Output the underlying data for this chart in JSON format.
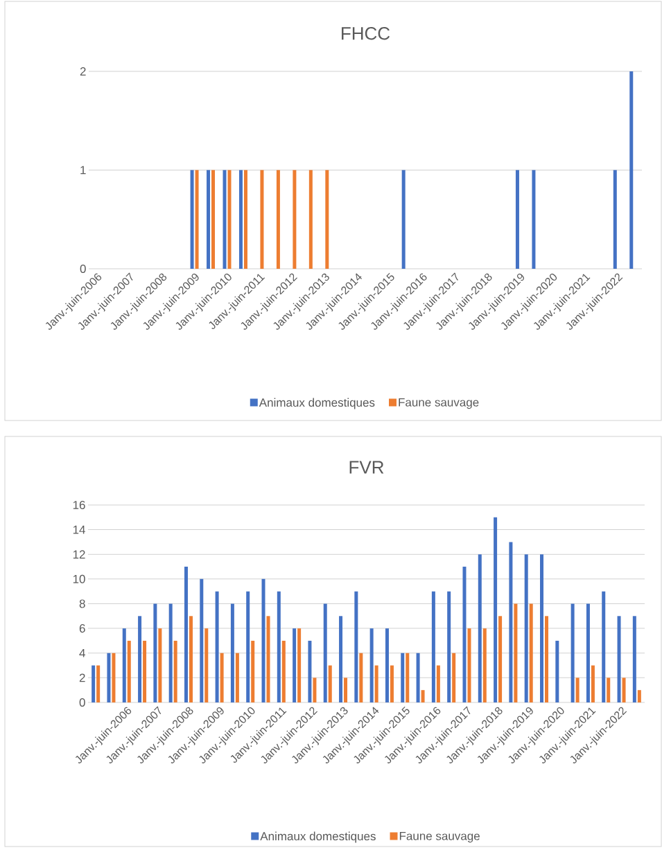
{
  "chart_data": [
    {
      "type": "bar",
      "title": "FHCC",
      "categories": [
        "Janv.-juin-2006",
        null,
        "Janv.-juin-2007",
        null,
        "Janv.-juin-2008",
        null,
        "Janv.-juin-2009",
        null,
        "Janv.-juin-2010",
        null,
        "Janv.-juin-2011",
        null,
        "Janv.-juin-2012",
        null,
        "Janv.-juin-2013",
        null,
        "Janv.-juin-2014",
        null,
        "Janv.-juin-2015",
        null,
        "Janv.-juin-2016",
        null,
        "Janv.-juin-2017",
        null,
        "Janv.-juin-2018",
        null,
        "Janv.-juin-2019",
        null,
        "Janv.-juin-2020",
        null,
        "Janv.-juin-2021",
        null,
        "Janv.-juin-2022",
        null
      ],
      "series": [
        {
          "name": "Animaux domestiques",
          "color": "#4472c4",
          "values": [
            null,
            null,
            null,
            null,
            null,
            null,
            1,
            1,
            1,
            1,
            null,
            null,
            null,
            null,
            null,
            null,
            null,
            null,
            null,
            1,
            null,
            null,
            null,
            null,
            null,
            null,
            1,
            1,
            null,
            null,
            null,
            null,
            1,
            2
          ]
        },
        {
          "name": "Faune sauvage",
          "color": "#ed7d31",
          "values": [
            null,
            null,
            null,
            null,
            null,
            null,
            1,
            1,
            1,
            1,
            1,
            1,
            1,
            1,
            1,
            null,
            null,
            null,
            null,
            null,
            null,
            null,
            null,
            null,
            null,
            null,
            null,
            null,
            null,
            null,
            null,
            null,
            null,
            null
          ]
        }
      ],
      "ylim": [
        0,
        2
      ],
      "yticks": [
        0,
        1,
        2
      ],
      "grid": "y",
      "legend": "bottom"
    },
    {
      "type": "bar",
      "title": "FVR",
      "categories": [
        null,
        null,
        "Janv.-juin-2006",
        null,
        "Janv.-juin-2007",
        null,
        "Janv.-juin-2008",
        null,
        "Janv.-juin-2009",
        null,
        "Janv.-juin-2010",
        null,
        "Janv.-juin-2011",
        null,
        "Janv.-juin-2012",
        null,
        "Janv.-juin-2013",
        null,
        "Janv.-juin-2014",
        null,
        "Janv.-juin-2015",
        null,
        "Janv.-juin-2016",
        null,
        "Janv.-juin-2017",
        null,
        "Janv.-juin-2018",
        null,
        "Janv.-juin-2019",
        null,
        "Janv.-juin-2020",
        null,
        "Janv.-juin-2021",
        null,
        "Janv.-juin-2022",
        null
      ],
      "series": [
        {
          "name": "Animaux domestiques",
          "color": "#4472c4",
          "values": [
            3,
            4,
            6,
            7,
            8,
            8,
            11,
            10,
            9,
            8,
            9,
            10,
            9,
            6,
            5,
            8,
            7,
            9,
            6,
            6,
            4,
            4,
            9,
            9,
            11,
            12,
            15,
            13,
            12,
            12,
            5,
            8,
            8,
            9,
            7,
            7
          ]
        },
        {
          "name": "Faune sauvage",
          "color": "#ed7d31",
          "values": [
            3,
            4,
            5,
            5,
            6,
            5,
            7,
            6,
            4,
            4,
            5,
            7,
            5,
            6,
            2,
            3,
            2,
            4,
            3,
            3,
            4,
            1,
            3,
            4,
            6,
            6,
            7,
            8,
            8,
            7,
            null,
            2,
            3,
            2,
            2,
            1
          ]
        }
      ],
      "ylim": [
        0,
        16
      ],
      "yticks": [
        0,
        2,
        4,
        6,
        8,
        10,
        12,
        14,
        16
      ],
      "grid": "y",
      "legend": "bottom"
    }
  ]
}
